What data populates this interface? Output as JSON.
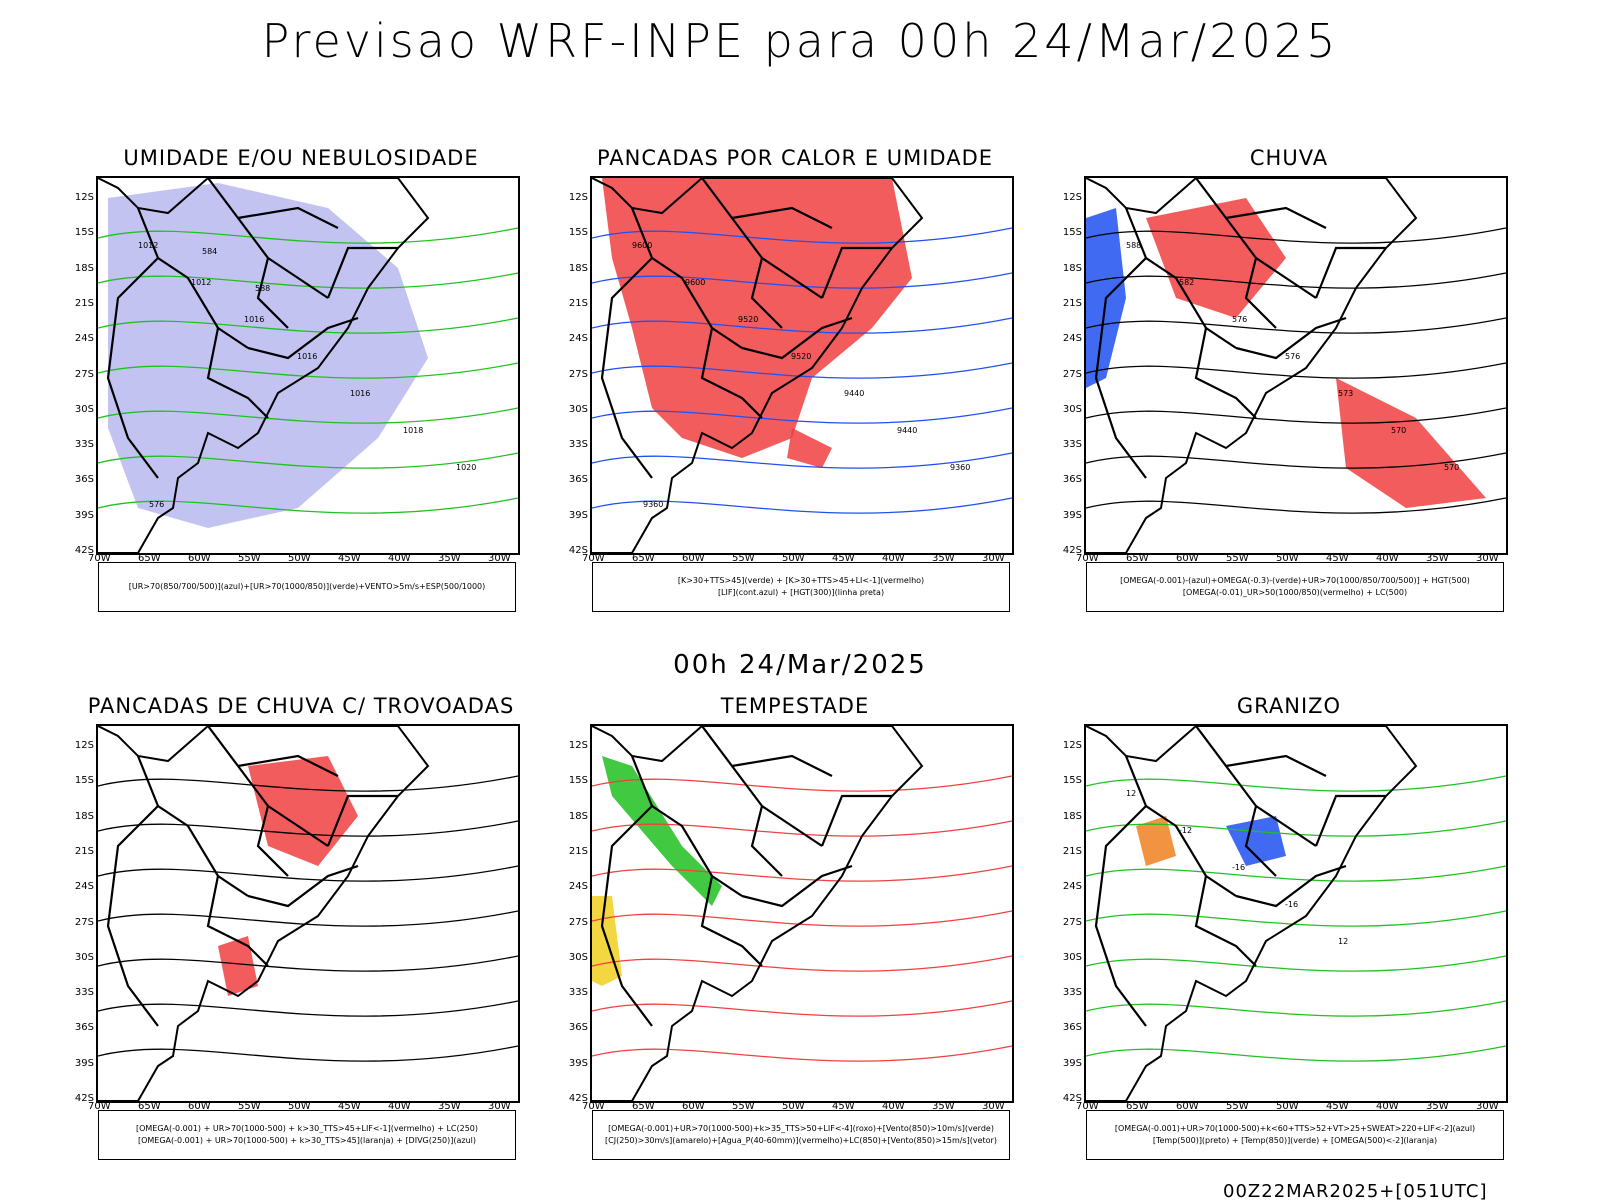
{
  "header": {
    "title": "Previsao WRF-INPE  para 00h 24/Mar/2025"
  },
  "mid_label": "00h 24/Mar/2025",
  "footer": "00Z22MAR2025+[051UTC]",
  "axes": {
    "lat_labels": [
      "12S",
      "15S",
      "18S",
      "21S",
      "24S",
      "27S",
      "30S",
      "33S",
      "36S",
      "39S",
      "42S"
    ],
    "lon_labels": [
      "70W",
      "65W",
      "60W",
      "55W",
      "50W",
      "45W",
      "40W",
      "35W",
      "30W"
    ]
  },
  "panels": [
    {
      "title": "UMIDADE E/OU NEBULOSIDADE",
      "legend": [
        "[UR>70(850/700/500)](azul)+[UR>70(1000/850)](verde)+VENTO>5m/s+ESP(500/1000)"
      ]
    },
    {
      "title": "PANCADAS POR CALOR E UMIDADE",
      "legend": [
        "[K>30+TTS>45](verde) + [K>30+TTS>45+LI<-1](vermelho)",
        "[LIF](cont.azul) + [HGT(300)](linha preta)"
      ]
    },
    {
      "title": "CHUVA",
      "legend": [
        "[OMEGA(-0.001)-(azul)+OMEGA(-0.3)-(verde)+UR>70(1000/850/700/500)] + HGT(500)",
        "[OMEGA(-0.01)_UR>50(1000/850)(vermelho) + LC(500)"
      ]
    },
    {
      "title": "PANCADAS DE CHUVA C/ TROVOADAS",
      "legend": [
        "[OMEGA(-0.001) + UR>70(1000-500) + k>30_TTS>45+LIF<-1](vermelho) + LC(250)",
        "[OMEGA(-0.001) + UR>70(1000-500) + k>30_TTS>45](laranja) + [DIVG(250)](azul)"
      ]
    },
    {
      "title": "TEMPESTADE",
      "legend": [
        "[OMEGA(-0.001)+UR>70(1000-500)+k>35_TTS>50+LIF<-4](roxo)+[Vento(850)>10m/s](verde)",
        "[CJ(250)>30m/s](amarelo)+[Agua_P(40-60mm)](vermelho)+LC(850)+[Vento(850)>15m/s](vetor)"
      ]
    },
    {
      "title": "GRANIZO",
      "legend": [
        "[OMEGA(-0.001)+UR>70(1000-500)+k<60+TTS>52+VT>25+SWEAT>220+LIF<-2](azul)",
        "[Temp(500)](preto) + [Temp(850)](verde) + [OMEGA(500)<-2](laranja)"
      ]
    }
  ],
  "contour_labels": {
    "p1": [
      "1012",
      "1012",
      "1016",
      "1016",
      "1016",
      "1018",
      "1020",
      "576",
      "584",
      "588"
    ],
    "p2": [
      "9600",
      "9600",
      "9520",
      "9520",
      "9440",
      "9440",
      "9360",
      "9360"
    ],
    "p3": [
      "588",
      "582",
      "576",
      "576",
      "573",
      "570",
      "570"
    ],
    "p6": [
      "12",
      "-12",
      "-16",
      "-16",
      "12"
    ]
  }
}
